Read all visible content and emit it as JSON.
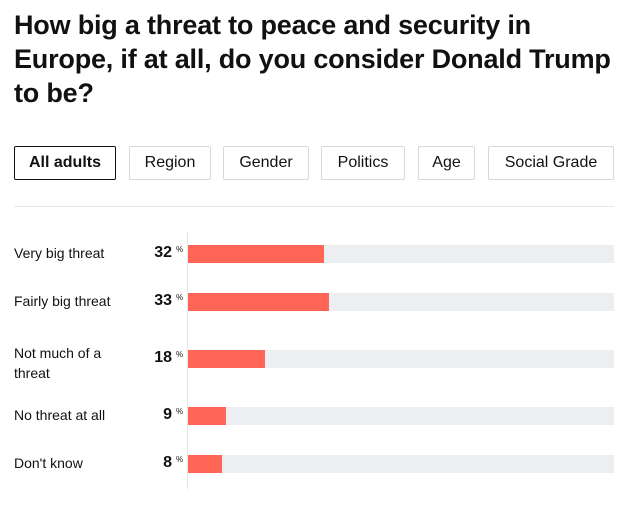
{
  "title": "How big a threat to peace and security in Europe, if at all, do you consider Donald Trump to be?",
  "tabs": [
    {
      "label": "All adults",
      "active": true
    },
    {
      "label": "Region"
    },
    {
      "label": "Gender"
    },
    {
      "label": "Politics"
    },
    {
      "label": "Age"
    },
    {
      "label": "Social Grade"
    }
  ],
  "colors": {
    "bar": "#ff6655",
    "track": "#edeef1"
  },
  "chart_data": {
    "type": "bar",
    "orientation": "horizontal",
    "categories": [
      "Very big threat",
      "Fairly big threat",
      "Not much of a threat",
      "No threat at all",
      "Don't know"
    ],
    "values": [
      32,
      33,
      18,
      9,
      8
    ],
    "unit": "%",
    "xlim": [
      0,
      100
    ]
  }
}
